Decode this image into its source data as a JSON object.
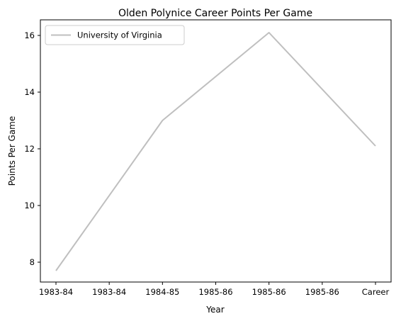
{
  "chart_data": {
    "type": "line",
    "title": "Olden Polynice Career Points Per Game",
    "xlabel": "Year",
    "ylabel": "Points Per Game",
    "categories": [
      "1983-84",
      "1984-85",
      "1985-86",
      "Career"
    ],
    "x_ticks": [
      "1983-84",
      "1983-84",
      "1984-85",
      "1985-86",
      "1985-86",
      "1985-86",
      "Career"
    ],
    "ylim": [
      7.3,
      16.55
    ],
    "y_ticks": [
      8,
      10,
      12,
      14,
      16
    ],
    "grid": false,
    "legend_position": "upper-left",
    "series": [
      {
        "name": "University of Virginia",
        "color": "#bfbfbf",
        "values": [
          7.7,
          13.0,
          16.1,
          12.1
        ]
      }
    ]
  }
}
